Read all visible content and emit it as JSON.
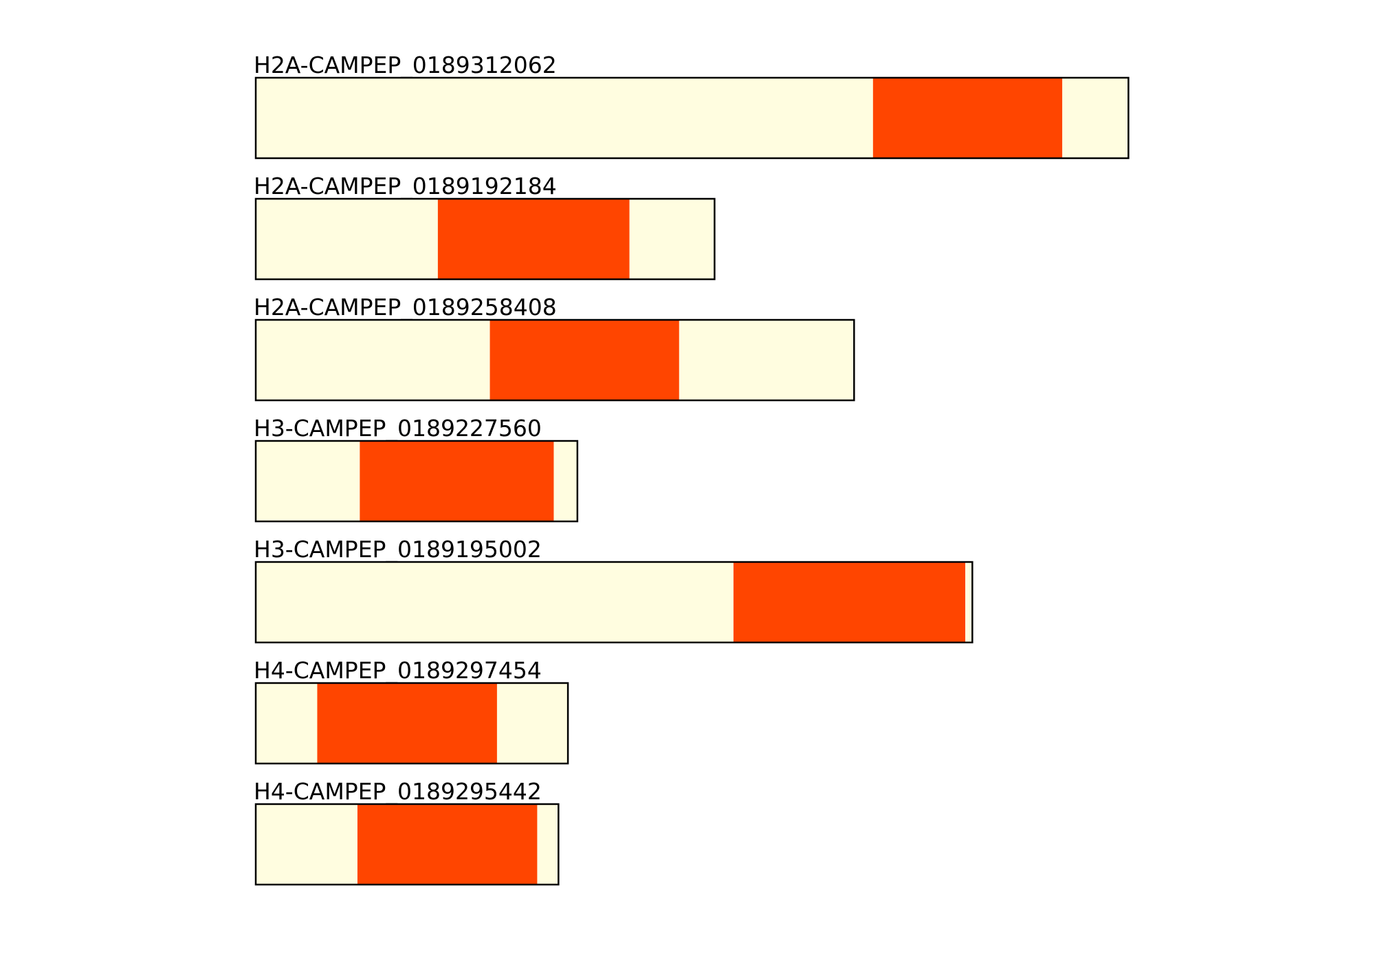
{
  "tracks": [
    {
      "label": "H2A-CAMPEP_0189312062",
      "length": 369,
      "domain": [
        261,
        341
      ]
    },
    {
      "label": "H2A-CAMPEP_0189192184",
      "length": 194,
      "domain": [
        77,
        158
      ]
    },
    {
      "label": "H2A-CAMPEP_0189258408",
      "length": 253,
      "domain": [
        99,
        179
      ]
    },
    {
      "label": "H3-CAMPEP_0189227560",
      "length": 136,
      "domain": [
        44,
        126
      ]
    },
    {
      "label": "H3-CAMPEP_0189195002",
      "length": 303,
      "domain": [
        202,
        300
      ]
    },
    {
      "label": "H4-CAMPEP_0189297454",
      "length": 132,
      "domain": [
        26,
        102
      ]
    },
    {
      "label": "H4-CAMPEP_0189295442",
      "length": 128,
      "domain": [
        43,
        119
      ]
    }
  ],
  "sequence_color": "#fffde0",
  "domain_color": "#ff4500"
}
